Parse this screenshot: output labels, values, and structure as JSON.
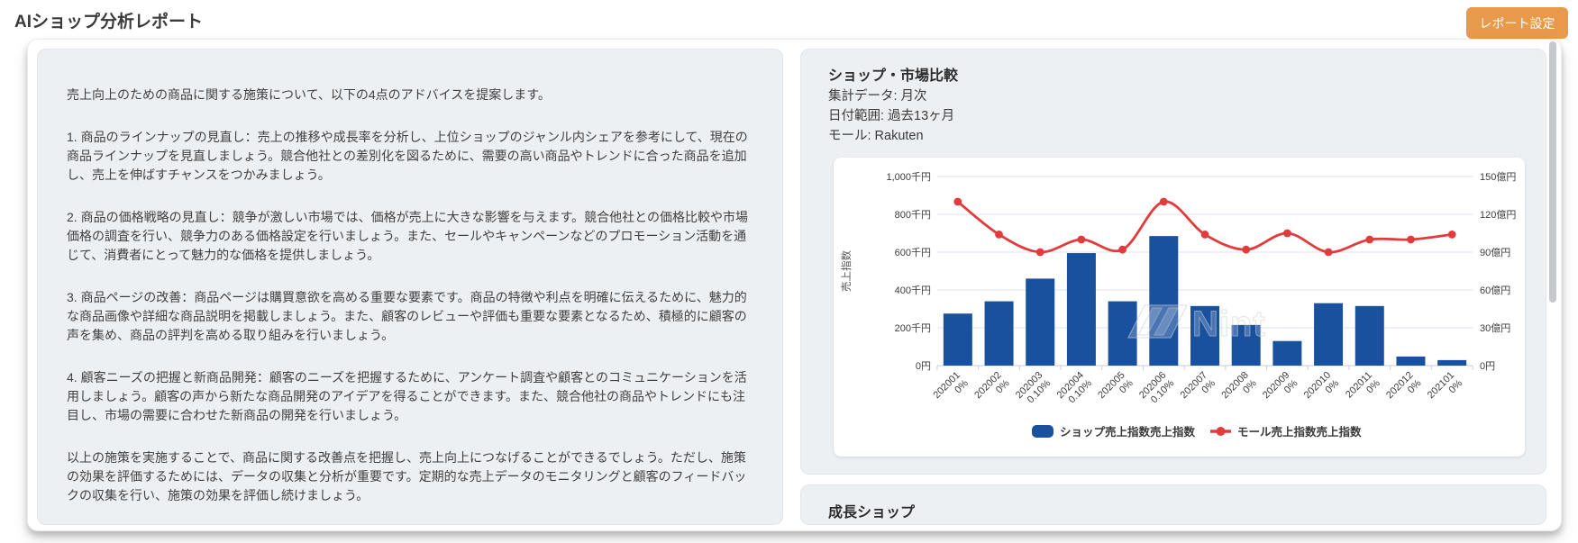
{
  "header": {
    "title": "AIショップ分析レポート",
    "settings_button": "レポート設定"
  },
  "advice": {
    "paragraphs": [
      "売上向上のための商品に関する施策について、以下の4点のアドバイスを提案します。",
      "1. 商品のラインナップの見直し：売上の推移や成長率を分析し、上位ショップのジャンル内シェアを参考にして、現在の商品ラインナップを見直しましょう。競合他社との差別化を図るために、需要の高い商品やトレンドに合った商品を追加し、売上を伸ばすチャンスをつかみましょう。",
      "2. 商品の価格戦略の見直し：競争が激しい市場では、価格が売上に大きな影響を与えます。競合他社との価格比較や市場価格の調査を行い、競争力のある価格設定を行いましょう。また、セールやキャンペーンなどのプロモーション活動を通じて、消費者にとって魅力的な価格を提供しましょう。",
      "3. 商品ページの改善：商品ページは購買意欲を高める重要な要素です。商品の特徴や利点を明確に伝えるために、魅力的な商品画像や詳細な商品説明を掲載しましょう。また、顧客のレビューや評価も重要な要素となるため、積極的に顧客の声を集め、商品の評判を高める取り組みを行いましょう。",
      "4. 顧客ニーズの把握と新商品開発：顧客のニーズを把握するために、アンケート調査や顧客とのコミュニケーションを活用しましょう。顧客の声から新たな商品開発のアイデアを得ることができます。また、競合他社の商品やトレンドにも注目し、市場の需要に合わせた新商品の開発を行いましょう。",
      "以上の施策を実施することで、商品に関する改善点を把握し、売上向上につなげることができるでしょう。ただし、施策の効果を評価するためには、データの収集と分析が重要です。定期的な売上データのモニタリングと顧客のフィードバックの収集を行い、施策の効果を評価し続けましょう。"
    ]
  },
  "comparison_card": {
    "title": "ショップ・市場比較",
    "meta": [
      "集計データ: 月次",
      "日付範囲: 過去13ヶ月",
      "モール: Rakuten"
    ]
  },
  "growth_card": {
    "title": "成長ショップ"
  },
  "chart_data": {
    "type": "bar+line",
    "categories": [
      "202001",
      "202002",
      "202003",
      "202004",
      "202005",
      "202006",
      "202007",
      "202008",
      "202009",
      "202010",
      "202011",
      "202012",
      "202101"
    ],
    "category_growth": [
      "0%",
      "0%",
      "0.10%",
      "0.10%",
      "0%",
      "0.10%",
      "0%",
      "0%",
      "0%",
      "0%",
      "0%",
      "0%",
      "0%"
    ],
    "series": [
      {
        "name": "ショップ売上指数売上指数",
        "type": "bar",
        "yaxis": "left",
        "color": "#1a519f",
        "values": [
          275,
          340,
          460,
          595,
          340,
          685,
          315,
          215,
          130,
          330,
          315,
          48,
          29
        ]
      },
      {
        "name": "モール売上指数売上指数",
        "type": "line",
        "yaxis": "right",
        "color": "#e23b3c",
        "values": [
          130,
          104,
          90,
          100,
          92,
          130,
          104,
          92,
          105,
          90,
          100,
          100,
          104
        ]
      }
    ],
    "left_axis": {
      "title": "売上指数",
      "unit": "千円",
      "ticks": [
        "0円",
        "200千円",
        "400千円",
        "600千円",
        "800千円",
        "1,000千円"
      ],
      "max": 1000
    },
    "right_axis": {
      "unit": "億円",
      "ticks": [
        "0円",
        "30億円",
        "60億円",
        "90億円",
        "120億円",
        "150億円"
      ],
      "max": 150
    },
    "legend_position": "bottom",
    "grid": true,
    "watermark": "Nint"
  },
  "colors": {
    "bar": "#1a519f",
    "line": "#e23b3c",
    "button": "#e9994b",
    "panel_bg": "#edf0f3",
    "grid_line": "#dee5f0"
  }
}
